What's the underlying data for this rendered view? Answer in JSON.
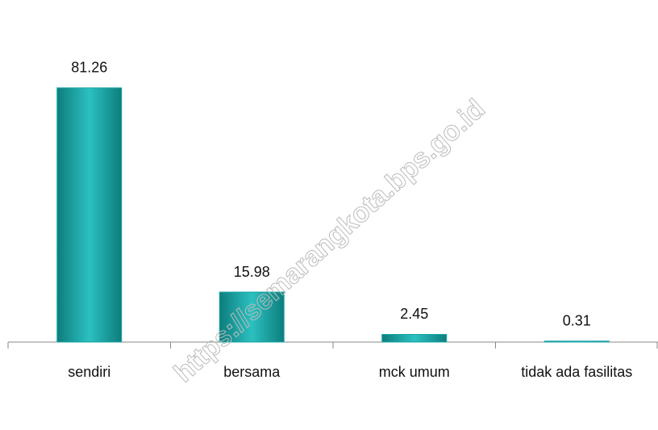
{
  "chart_data": {
    "type": "bar",
    "categories": [
      "sendiri",
      "bersama",
      "mck umum",
      "tidak ada fasilitas"
    ],
    "values": [
      81.26,
      15.98,
      2.45,
      0.31
    ],
    "color": "#1aa5a5",
    "ylim": [
      0,
      90
    ],
    "watermark": "https://semarangkota.bps.go.id"
  }
}
